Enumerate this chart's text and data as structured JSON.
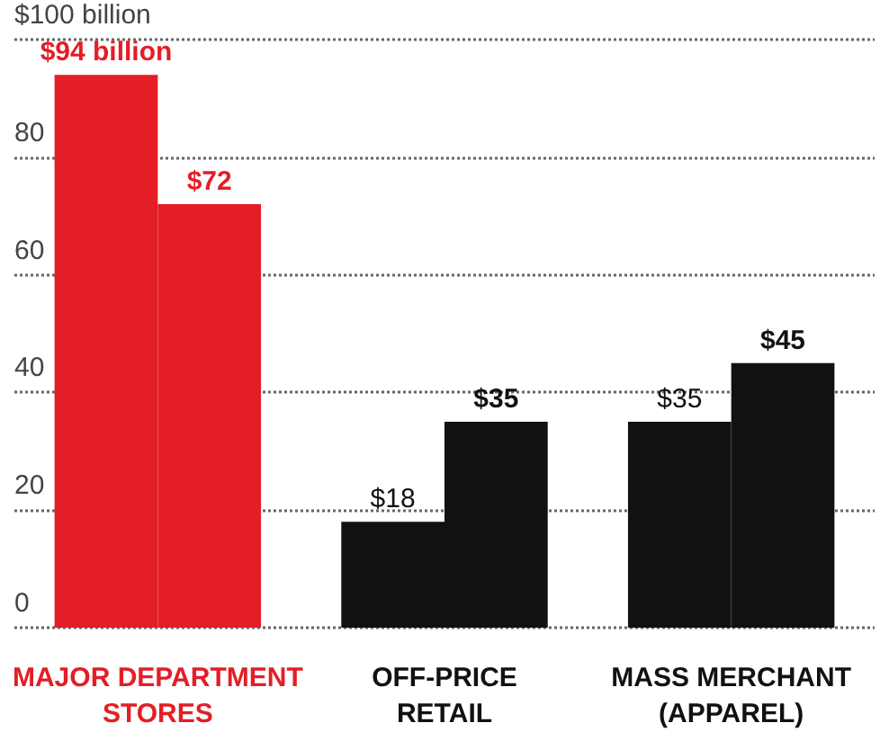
{
  "chart_data": {
    "type": "bar",
    "categories": [
      "MAJOR DEPARTMENT\nSTORES",
      "OFF-PRICE\nRETAIL",
      "MASS MERCHANT\n(APPAREL)"
    ],
    "series": [
      {
        "values": [
          94,
          18,
          35
        ],
        "colors": [
          "#e31e26",
          "#111111",
          "#111111"
        ],
        "value_labels": [
          "$94 billion",
          "$18",
          "$35"
        ]
      },
      {
        "values": [
          72,
          35,
          45
        ],
        "colors": [
          "#e31e26",
          "#111111",
          "#111111"
        ],
        "value_labels": [
          "$72",
          "$35",
          "$45"
        ]
      }
    ],
    "ylim": [
      0,
      100
    ],
    "yticks": [
      0,
      20,
      40,
      60,
      80,
      {
        "value": 100,
        "label": "$100 billion"
      }
    ],
    "grid": "y"
  }
}
